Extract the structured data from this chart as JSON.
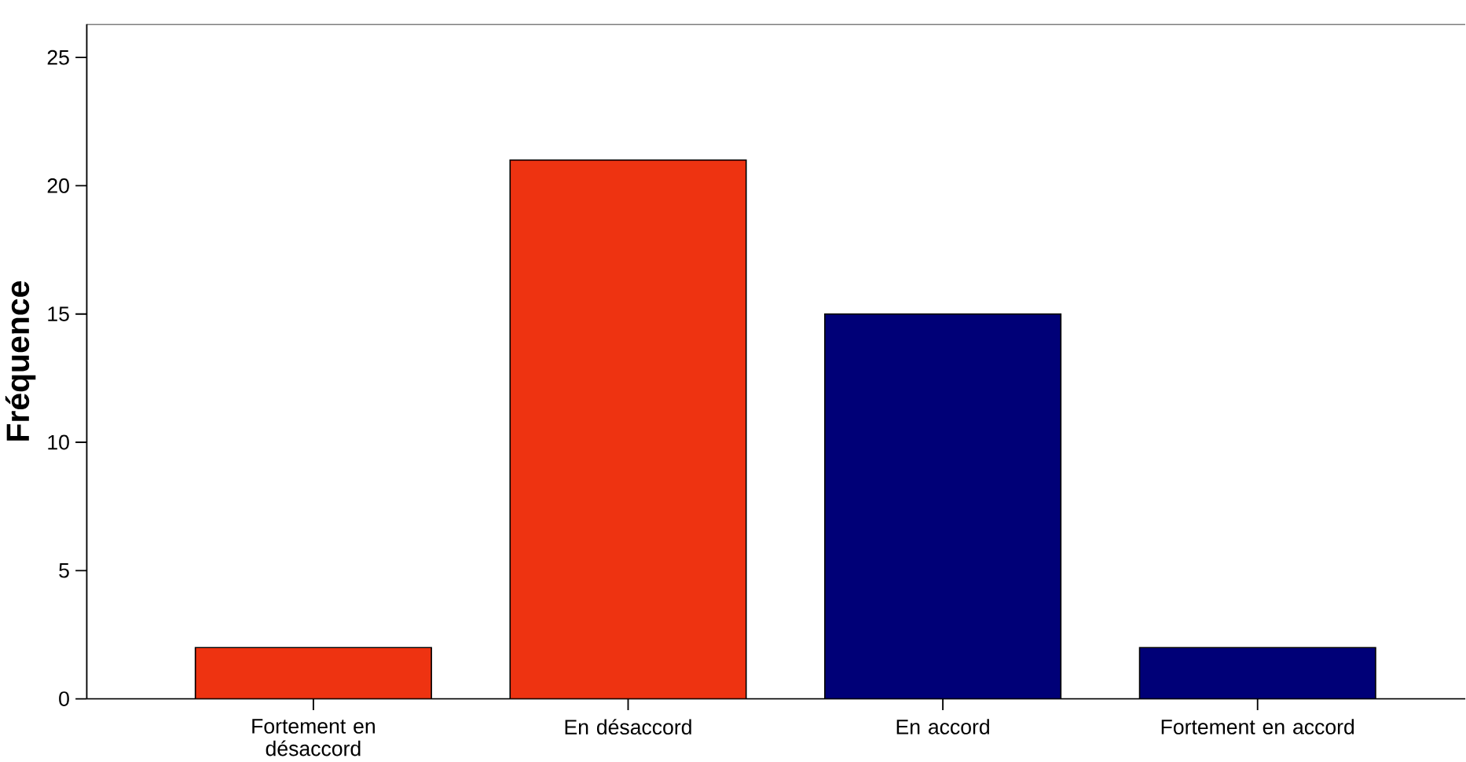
{
  "chart_data": {
    "type": "bar",
    "ylabel": "Fréquence",
    "categories": [
      "Fortement en désaccord",
      "En désaccord",
      "En accord",
      "Fortement en accord"
    ],
    "values": [
      2,
      21,
      15,
      2
    ],
    "colors": [
      "#ee3311",
      "#ee3311",
      "#000077",
      "#000077"
    ],
    "ylim": [
      0,
      26.3
    ],
    "yticks": [
      0,
      5,
      10,
      15,
      20,
      25
    ]
  }
}
